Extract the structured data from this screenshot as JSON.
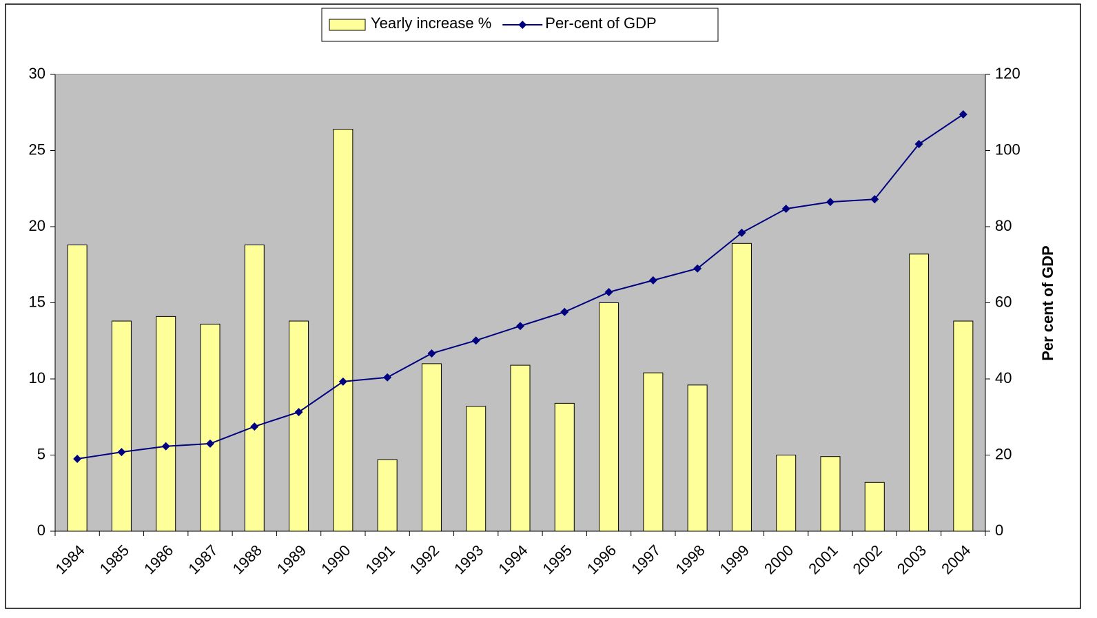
{
  "chart_data": {
    "type": "bar",
    "categories": [
      "1984",
      "1985",
      "1986",
      "1987",
      "1988",
      "1989",
      "1990",
      "1991",
      "1992",
      "1993",
      "1994",
      "1995",
      "1996",
      "1997",
      "1998",
      "1999",
      "2000",
      "2001",
      "2002",
      "2003",
      "2004"
    ],
    "series": [
      {
        "name": "Yearly increase %",
        "type": "bar",
        "axis": "y",
        "color": "#ffff99",
        "values": [
          18.8,
          13.8,
          14.1,
          13.6,
          18.8,
          13.8,
          26.4,
          4.7,
          11.0,
          8.2,
          10.9,
          8.4,
          15.0,
          10.4,
          9.6,
          18.9,
          5.0,
          4.9,
          3.2,
          18.2,
          13.8
        ]
      },
      {
        "name": "Per-cent of GDP",
        "type": "line",
        "axis": "y2",
        "color": "#000080",
        "values": [
          19.0,
          20.8,
          22.3,
          23.0,
          27.5,
          31.3,
          39.3,
          40.4,
          46.7,
          50.1,
          53.9,
          57.6,
          62.8,
          65.9,
          69.0,
          78.4,
          84.7,
          86.5,
          87.2,
          101.7,
          109.5
        ]
      }
    ],
    "ylim": [
      0,
      30
    ],
    "yticks": [
      0,
      5,
      10,
      15,
      20,
      25,
      30
    ],
    "y2lim": [
      0,
      120
    ],
    "y2ticks": [
      0,
      20,
      40,
      60,
      80,
      100,
      120
    ],
    "y2label": "Per cent of GDP",
    "plot_background": "#c0c0c0",
    "legend": "top"
  }
}
